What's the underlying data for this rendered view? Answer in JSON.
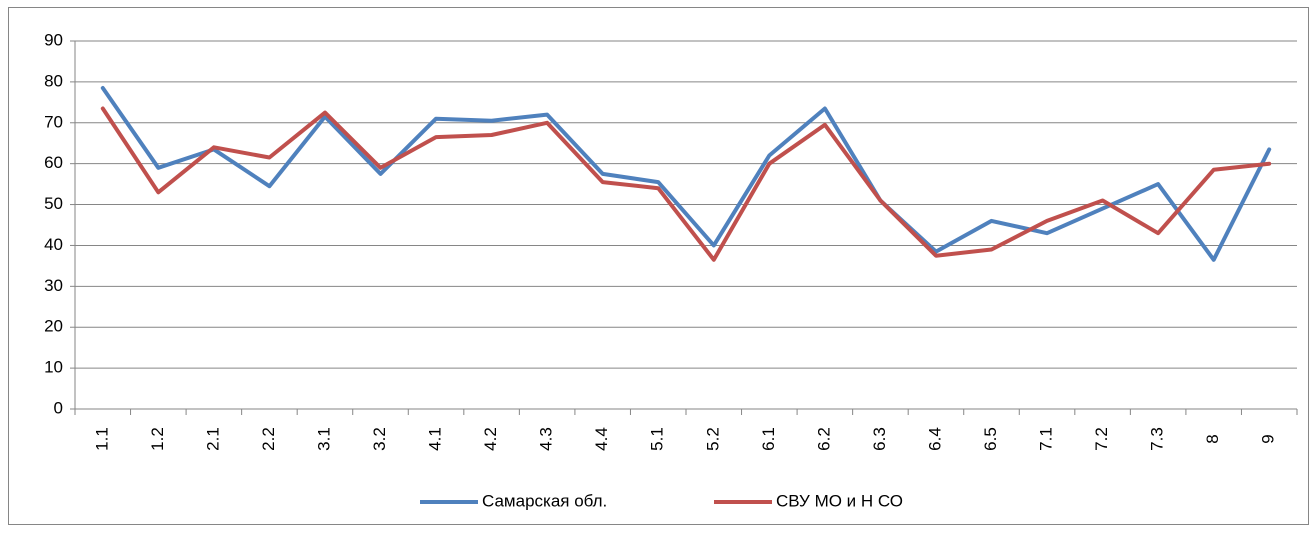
{
  "chart_data": {
    "type": "line",
    "categories": [
      "1.1",
      "1.2",
      "2.1",
      "2.2",
      "3.1",
      "3.2",
      "4.1",
      "4.2",
      "4.3",
      "4.4",
      "5.1",
      "5.2",
      "6.1",
      "6.2",
      "6.3",
      "6.4",
      "6.5",
      "7.1",
      "7.2",
      "7.3",
      "8",
      "9"
    ],
    "series": [
      {
        "name": "Самарская обл.",
        "color": "#4f81bd",
        "values": [
          78.5,
          59,
          63.5,
          54.5,
          71.5,
          57.5,
          71,
          70.5,
          72,
          57.5,
          55.5,
          40,
          62,
          73.5,
          51,
          38.5,
          46,
          43,
          49,
          55,
          36.5,
          63.5
        ]
      },
      {
        "name": "СВУ МО и Н СО",
        "color": "#c0504d",
        "values": [
          73.5,
          53,
          64,
          61.5,
          72.5,
          59,
          66.5,
          67,
          70,
          55.5,
          54,
          36.5,
          60,
          69.5,
          51,
          37.5,
          39,
          46,
          51,
          43,
          58.5,
          60
        ]
      }
    ],
    "ylim": [
      0,
      90
    ],
    "yticks": [
      0,
      10,
      20,
      30,
      40,
      50,
      60,
      70,
      80,
      90
    ],
    "grid": true,
    "legend": "bottom"
  }
}
